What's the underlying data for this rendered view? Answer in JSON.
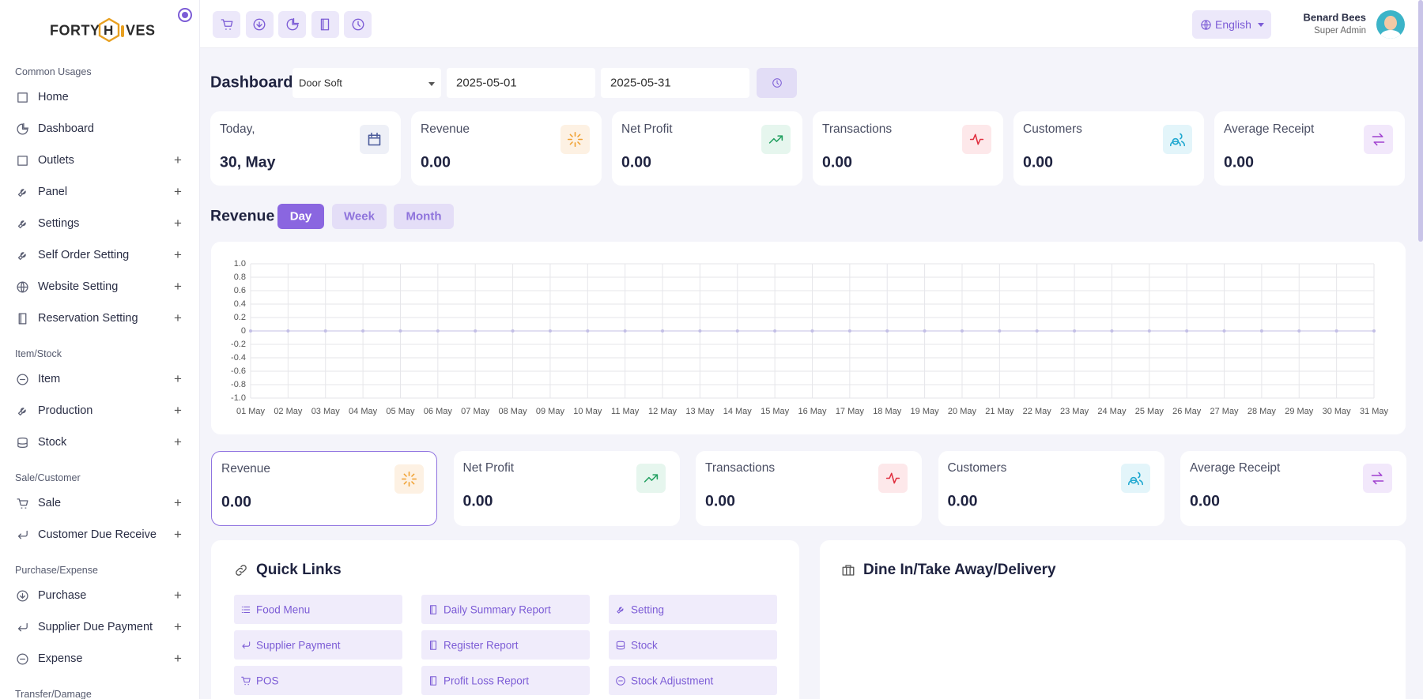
{
  "logo": {
    "left": "FORTY",
    "mark": "H",
    "right": "VES"
  },
  "top_bar": {
    "language": "English",
    "user": {
      "name": "Benard Bees",
      "role": "Super Admin"
    }
  },
  "sidebar": {
    "sections": [
      {
        "title": "Common Usages",
        "items": [
          {
            "label": "Home",
            "expandable": false
          },
          {
            "label": "Dashboard",
            "expandable": false
          },
          {
            "label": "Outlets",
            "expandable": true
          },
          {
            "label": "Panel",
            "expandable": true
          },
          {
            "label": "Settings",
            "expandable": true
          },
          {
            "label": "Self Order Setting",
            "expandable": true
          },
          {
            "label": "Website Setting",
            "expandable": true
          },
          {
            "label": "Reservation Setting",
            "expandable": true
          }
        ]
      },
      {
        "title": "Item/Stock",
        "items": [
          {
            "label": "Item",
            "expandable": true
          },
          {
            "label": "Production",
            "expandable": true
          },
          {
            "label": "Stock",
            "expandable": true
          }
        ]
      },
      {
        "title": "Sale/Customer",
        "items": [
          {
            "label": "Sale",
            "expandable": true
          },
          {
            "label": "Customer Due Receive",
            "expandable": true
          }
        ]
      },
      {
        "title": "Purchase/Expense",
        "items": [
          {
            "label": "Purchase",
            "expandable": true
          },
          {
            "label": "Supplier Due Payment",
            "expandable": true
          },
          {
            "label": "Expense",
            "expandable": true
          }
        ]
      },
      {
        "title": "Transfer/Damage",
        "items": []
      }
    ]
  },
  "filters": {
    "title": "Dashboard",
    "outlet": "Door Soft",
    "date_from": "2025-05-01",
    "date_to": "2025-05-31"
  },
  "summary_cards": [
    {
      "label": "Today,",
      "value": "30, May"
    },
    {
      "label": "Revenue",
      "value": "0.00"
    },
    {
      "label": "Net Profit",
      "value": "0.00"
    },
    {
      "label": "Transactions",
      "value": "0.00"
    },
    {
      "label": "Customers",
      "value": "0.00"
    },
    {
      "label": "Average Receipt",
      "value": "0.00"
    }
  ],
  "revenue": {
    "title": "Revenue",
    "tabs": [
      "Day",
      "Week",
      "Month"
    ],
    "active_tab": 0
  },
  "chart": {
    "type": "line",
    "color": "#c3bfe6",
    "grid": true,
    "categories": [
      "01 May",
      "02 May",
      "03 May",
      "04 May",
      "05 May",
      "06 May",
      "07 May",
      "08 May",
      "09 May",
      "10 May",
      "11 May",
      "12 May",
      "13 May",
      "14 May",
      "15 May",
      "16 May",
      "17 May",
      "18 May",
      "19 May",
      "20 May",
      "21 May",
      "22 May",
      "23 May",
      "24 May",
      "25 May",
      "26 May",
      "27 May",
      "28 May",
      "29 May",
      "30 May",
      "31 May"
    ],
    "values": [
      0,
      0,
      0,
      0,
      0,
      0,
      0,
      0,
      0,
      0,
      0,
      0,
      0,
      0,
      0,
      0,
      0,
      0,
      0,
      0,
      0,
      0,
      0,
      0,
      0,
      0,
      0,
      0,
      0,
      0,
      0
    ],
    "ylim": [
      -1,
      1
    ],
    "yticks": [
      {
        "value": 1,
        "label": "1.0"
      },
      0.8,
      0.6,
      0.4,
      0.2,
      0,
      -0.2,
      -0.4,
      -0.6,
      -0.8,
      {
        "value": -1,
        "label": "-1.0"
      }
    ]
  },
  "period_cards": [
    {
      "label": "Revenue",
      "value": "0.00"
    },
    {
      "label": "Net Profit",
      "value": "0.00"
    },
    {
      "label": "Transactions",
      "value": "0.00"
    },
    {
      "label": "Customers",
      "value": "0.00"
    },
    {
      "label": "Average Receipt",
      "value": "0.00"
    }
  ],
  "active_period_card": 0,
  "quick_links": {
    "title": "Quick Links",
    "links": [
      "Food Menu",
      "Daily Summary Report",
      "Setting",
      "Supplier Payment",
      "Register Report",
      "Stock",
      "POS",
      "Profit Loss Report",
      "Stock Adjustment"
    ]
  },
  "order_types": {
    "title": "Dine In/Take Away/Delivery"
  }
}
